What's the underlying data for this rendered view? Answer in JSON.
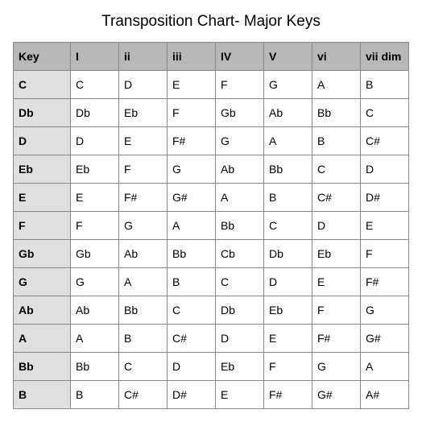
{
  "title": "Transposition Chart- Major Keys",
  "styles": {
    "header_bg": "#b8b8b8",
    "rowhead_bg": "#e0e0e0",
    "border_color": "#888888",
    "title_fontsize": 19,
    "cell_fontsize": 14
  },
  "columns": [
    "Key",
    "I",
    "ii",
    "iii",
    "IV",
    "V",
    "vi",
    "vii dim"
  ],
  "rows": [
    [
      "C",
      "C",
      "D",
      "E",
      "F",
      "G",
      "A",
      "B"
    ],
    [
      "Db",
      "Db",
      "Eb",
      "F",
      "Gb",
      "Ab",
      "Bb",
      "C"
    ],
    [
      "D",
      "D",
      "E",
      "F#",
      "G",
      "A",
      "B",
      "C#"
    ],
    [
      "Eb",
      "Eb",
      "F",
      "G",
      "Ab",
      "Bb",
      "C",
      "D"
    ],
    [
      "E",
      "E",
      "F#",
      "G#",
      "A",
      "B",
      "C#",
      "D#"
    ],
    [
      "F",
      "F",
      "G",
      "A",
      "Bb",
      "C",
      "D",
      "E"
    ],
    [
      "Gb",
      "Gb",
      "Ab",
      "Bb",
      "Cb",
      "Db",
      "Eb",
      "F"
    ],
    [
      "G",
      "G",
      "A",
      "B",
      "C",
      "D",
      "E",
      "F#"
    ],
    [
      "Ab",
      "Ab",
      "Bb",
      "C",
      "Db",
      "Eb",
      "F",
      "G"
    ],
    [
      "A",
      "A",
      "B",
      "C#",
      "D",
      "E",
      "F#",
      "G#"
    ],
    [
      "Bb",
      "Bb",
      "C",
      "D",
      "Eb",
      "F",
      "G",
      "A"
    ],
    [
      "B",
      "B",
      "C#",
      "D#",
      "E",
      "F#",
      "G#",
      "A#"
    ]
  ]
}
